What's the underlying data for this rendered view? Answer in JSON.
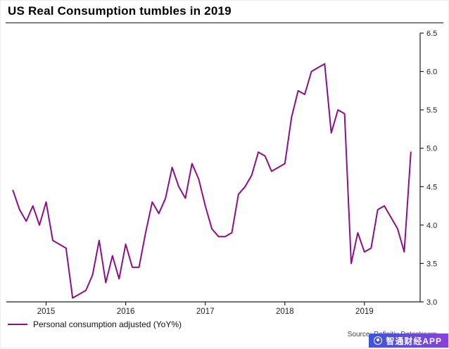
{
  "title": "US Real Consumption tumbles in 2019",
  "legend": {
    "label": "Personal consumption adjusted (YoY%)"
  },
  "source": "Source: Refinitiv Datastream",
  "watermark": {
    "text": "智通财经APP",
    "bg_from": "#3d55d8",
    "bg_to": "#8a41d8"
  },
  "chart_data": {
    "type": "line",
    "title": "US Real Consumption tumbles in 2019",
    "xlabel": "",
    "ylabel": "",
    "y_axis_side": "right",
    "grid": false,
    "line_color": "#8B0E8B",
    "axis_color": "#1f1f1f",
    "ylim": [
      3.0,
      6.5
    ],
    "xlim_years": [
      2014.5,
      2019.7
    ],
    "y_ticks": [
      3.0,
      3.5,
      4.0,
      4.5,
      5.0,
      5.5,
      6.0,
      6.5
    ],
    "x_ticks": [
      "2015",
      "2016",
      "2017",
      "2018",
      "2019"
    ],
    "series": [
      {
        "name": "Personal consumption adjusted (YoY%)",
        "start": "2014-08",
        "frequency": "monthly",
        "values": [
          4.45,
          4.2,
          4.05,
          4.25,
          4.0,
          4.3,
          3.8,
          3.75,
          3.7,
          3.05,
          3.1,
          3.15,
          3.35,
          3.8,
          3.25,
          3.6,
          3.3,
          3.75,
          3.45,
          3.45,
          3.9,
          4.3,
          4.15,
          4.35,
          4.75,
          4.5,
          4.35,
          4.8,
          4.6,
          4.25,
          3.95,
          3.85,
          3.85,
          3.9,
          4.4,
          4.5,
          4.65,
          4.95,
          4.9,
          4.7,
          4.75,
          4.8,
          5.4,
          5.75,
          5.7,
          6.0,
          6.05,
          6.1,
          5.2,
          5.5,
          5.45,
          3.5,
          3.9,
          3.65,
          3.7,
          4.2,
          4.25,
          4.1,
          3.95,
          3.65,
          4.95
        ]
      }
    ]
  }
}
